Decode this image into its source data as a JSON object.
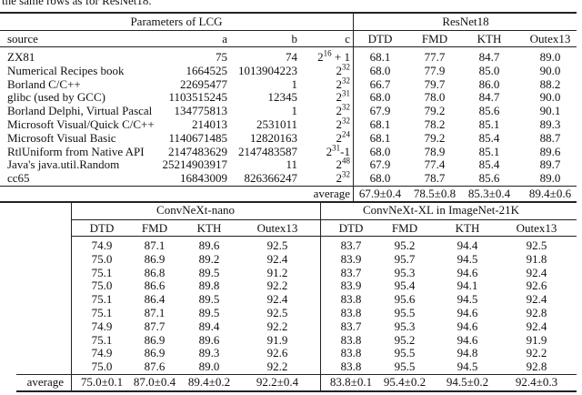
{
  "caption_fragment": "the same rows as for ResNet18.",
  "table1": {
    "group_headers": {
      "params": "Parameters of LCG",
      "model": "ResNet18"
    },
    "columns": [
      "source",
      "a",
      "b",
      "c",
      "DTD",
      "FMD",
      "KTH",
      "Outex13"
    ],
    "rows": [
      {
        "source": "ZX81",
        "a": "75",
        "b": "74",
        "c_base": "2",
        "c_exp": "16",
        "c_suffix": " + 1",
        "DTD": "68.1",
        "FMD": "77.7",
        "KTH": "84.7",
        "Outex13": "89.0"
      },
      {
        "source": "Numerical Recipes book",
        "a": "1664525",
        "b": "1013904223",
        "c_base": "2",
        "c_exp": "32",
        "c_suffix": "",
        "DTD": "68.0",
        "FMD": "77.9",
        "KTH": "85.0",
        "Outex13": "90.0"
      },
      {
        "source": "Borland C/C++",
        "a": "22695477",
        "b": "1",
        "c_base": "2",
        "c_exp": "32",
        "c_suffix": "",
        "DTD": "66.7",
        "FMD": "79.7",
        "KTH": "86.0",
        "Outex13": "88.2"
      },
      {
        "source": "glibc (used by GCC)",
        "a": "1103515245",
        "b": "12345",
        "c_base": "2",
        "c_exp": "31",
        "c_suffix": "",
        "DTD": "68.0",
        "FMD": "78.0",
        "KTH": "84.7",
        "Outex13": "90.0"
      },
      {
        "source": "Borland Delphi, Virtual Pascal",
        "a": "134775813",
        "b": "1",
        "c_base": "2",
        "c_exp": "32",
        "c_suffix": "",
        "DTD": "67.9",
        "FMD": "79.2",
        "KTH": "85.6",
        "Outex13": "90.1"
      },
      {
        "source": "Microsoft Visual/Quick C/C++",
        "a": "214013",
        "b": "2531011",
        "c_base": "2",
        "c_exp": "32",
        "c_suffix": "",
        "DTD": "68.1",
        "FMD": "78.2",
        "KTH": "85.1",
        "Outex13": "89.3"
      },
      {
        "source": "Microsoft Visual Basic",
        "a": "1140671485",
        "b": "12820163",
        "c_base": "2",
        "c_exp": "24",
        "c_suffix": "",
        "DTD": "68.1",
        "FMD": "79.2",
        "KTH": "85.4",
        "Outex13": "88.7"
      },
      {
        "source": "RtlUniform from Native API",
        "a": "2147483629",
        "b": "2147483587",
        "c_base": "2",
        "c_exp": "31",
        "c_suffix": "-1",
        "DTD": "68.0",
        "FMD": "78.9",
        "KTH": "85.1",
        "Outex13": "89.6"
      },
      {
        "source": "Java's java.util.Random",
        "a": "25214903917",
        "b": "11",
        "c_base": "2",
        "c_exp": "48",
        "c_suffix": "",
        "DTD": "67.9",
        "FMD": "77.4",
        "KTH": "85.4",
        "Outex13": "89.7"
      },
      {
        "source": "cc65",
        "a": "16843009",
        "b": "826366247",
        "c_base": "2",
        "c_exp": "32",
        "c_suffix": "",
        "DTD": "68.0",
        "FMD": "78.7",
        "KTH": "85.6",
        "Outex13": "89.0"
      }
    ],
    "average": {
      "label": "average",
      "DTD": "67.9±0.4",
      "FMD": "78.5±0.8",
      "KTH": "85.3±0.4",
      "Outex13": "89.4±0.6"
    }
  },
  "table2": {
    "group_headers": {
      "nano": "ConvNeXt-nano",
      "xl": "ConvNeXt-XL in ImageNet-21K"
    },
    "columns": [
      "DTD",
      "FMD",
      "KTH",
      "Outex13"
    ],
    "nano_rows": [
      [
        "74.9",
        "87.1",
        "89.6",
        "92.5"
      ],
      [
        "75.0",
        "86.9",
        "89.2",
        "92.4"
      ],
      [
        "75.1",
        "86.8",
        "89.5",
        "91.2"
      ],
      [
        "75.0",
        "86.6",
        "89.8",
        "92.2"
      ],
      [
        "75.1",
        "86.4",
        "89.5",
        "92.4"
      ],
      [
        "75.1",
        "87.1",
        "89.5",
        "92.5"
      ],
      [
        "74.9",
        "87.7",
        "89.4",
        "92.2"
      ],
      [
        "75.1",
        "86.9",
        "89.6",
        "91.9"
      ],
      [
        "74.9",
        "86.9",
        "89.3",
        "92.6"
      ],
      [
        "75.0",
        "87.6",
        "89.0",
        "92.2"
      ]
    ],
    "xl_rows": [
      [
        "83.7",
        "95.2",
        "94.4",
        "92.5"
      ],
      [
        "83.9",
        "95.7",
        "94.5",
        "91.8"
      ],
      [
        "83.7",
        "95.3",
        "94.6",
        "92.4"
      ],
      [
        "83.9",
        "95.4",
        "94.1",
        "92.6"
      ],
      [
        "83.8",
        "95.6",
        "94.5",
        "92.4"
      ],
      [
        "83.8",
        "95.5",
        "94.6",
        "92.8"
      ],
      [
        "83.7",
        "95.3",
        "94.6",
        "92.4"
      ],
      [
        "83.8",
        "95.2",
        "94.6",
        "91.9"
      ],
      [
        "83.8",
        "95.5",
        "94.8",
        "92.2"
      ],
      [
        "83.8",
        "95.5",
        "94.5",
        "92.8"
      ]
    ],
    "average": {
      "label": "average",
      "nano": [
        "75.0±0.1",
        "87.0±0.4",
        "89.4±0.2",
        "92.2±0.4"
      ],
      "xl": [
        "83.8±0.1",
        "95.4±0.2",
        "94.5±0.2",
        "92.4±0.3"
      ]
    }
  }
}
